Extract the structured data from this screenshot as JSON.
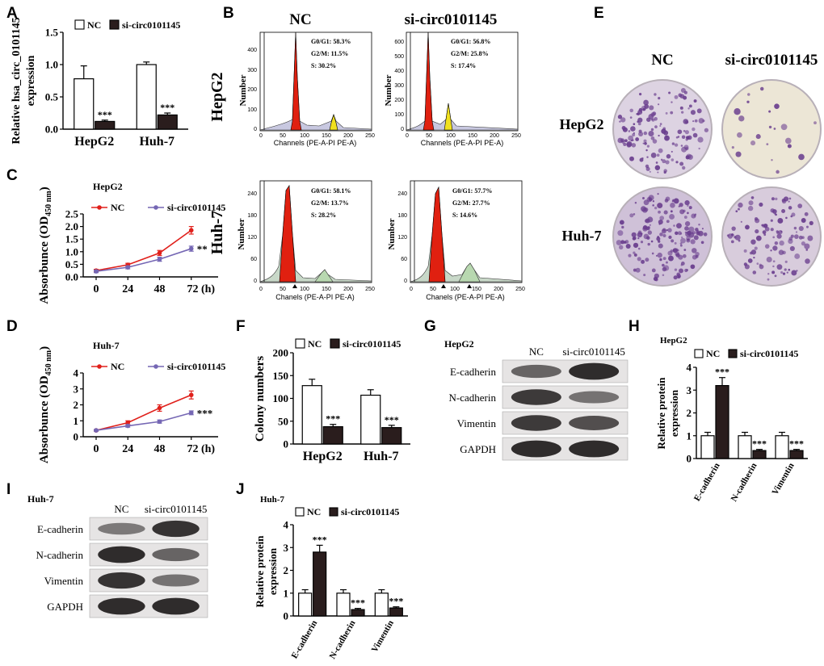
{
  "panel_labels": {
    "A": "A",
    "B": "B",
    "C": "C",
    "D": "D",
    "E": "E",
    "F": "F",
    "G": "G",
    "H": "H",
    "I": "I",
    "J": "J"
  },
  "colors": {
    "nc": "#ffffff",
    "si": "#2a1d1d",
    "nc_line": "#e0201b",
    "si_line": "#7567b4",
    "g0g1": "#e02010",
    "g2m": "#f0e020",
    "s_phase": "#b8d8b0",
    "colony": "#6a3e8e",
    "plate": "#ece6d6"
  },
  "legend": {
    "nc": "NC",
    "si": "si-circ0101145"
  },
  "panelA": {
    "ylabel_line1": "Relative hsa_circ_0101145",
    "ylabel_line2": "expression",
    "chart_data": {
      "type": "bar",
      "categories": [
        "HepG2",
        "Huh-7"
      ],
      "series": [
        {
          "name": "NC",
          "values": [
            0.78,
            1.0
          ],
          "errors": [
            0.2,
            0.04
          ]
        },
        {
          "name": "si-circ0101145",
          "values": [
            0.12,
            0.22
          ],
          "errors": [
            0.02,
            0.03
          ]
        }
      ],
      "ylim": [
        0,
        1.5
      ],
      "yticks": [
        "0.0",
        "0.5",
        "1.0",
        "1.5"
      ],
      "stars": [
        "***",
        "***"
      ]
    }
  },
  "panelB": {
    "col_headers": [
      "NC",
      "si-circ0101145"
    ],
    "row_labels": [
      "HepG2",
      "Huh-7"
    ],
    "ylabel": "Number",
    "xlabel_top": "Channels (PE-A-PI PE-A)",
    "xlabel_bottom": "Chanels (PE-A-PI PE-A)",
    "xticks": [
      "0",
      "50",
      "100",
      "150",
      "200",
      "250"
    ],
    "yticks_hepg2_nc": [
      "0",
      "100",
      "200",
      "300",
      "400"
    ],
    "yticks_hepg2_si": [
      "0",
      "100",
      "200",
      "300",
      "400",
      "500",
      "600"
    ],
    "yticks_huh7": [
      "0",
      "60",
      "120",
      "180",
      "240"
    ],
    "plots": [
      {
        "stats": [
          "G0/G1: 58.3%",
          "G2/M: 11.5%",
          "S: 30.2%"
        ]
      },
      {
        "stats": [
          "G0/G1: 56.8%",
          "G2/M: 25.8%",
          "S: 17.4%"
        ]
      },
      {
        "stats": [
          "G0/G1: 58.1%",
          "G2/M: 13.7%",
          "S: 28.2%"
        ]
      },
      {
        "stats": [
          "G0/G1: 57.7%",
          "G2/M: 27.7%",
          "S: 14.6%"
        ]
      }
    ]
  },
  "panelC": {
    "cell": "HepG2",
    "ylabel": "Absorbunce (OD",
    "ylabel_sub": "450 nm",
    "ylabel_end": ")",
    "chart_data": {
      "type": "line",
      "x": [
        "0",
        "24",
        "48",
        "72 (h)"
      ],
      "series": [
        {
          "name": "NC",
          "values": [
            0.25,
            0.48,
            0.95,
            1.85
          ],
          "errors": [
            0.05,
            0.06,
            0.1,
            0.15
          ]
        },
        {
          "name": "si-circ0101145",
          "values": [
            0.22,
            0.38,
            0.7,
            1.12
          ],
          "errors": [
            0.05,
            0.06,
            0.08,
            0.1
          ]
        }
      ],
      "ylim": [
        0,
        2.5
      ],
      "yticks": [
        "0.0",
        "0.5",
        "1.0",
        "1.5",
        "2.0",
        "2.5"
      ],
      "sig": "**"
    }
  },
  "panelD": {
    "cell": "Huh-7",
    "ylabel": "Absorbunce (OD",
    "ylabel_sub": "450 nm",
    "ylabel_end": ")",
    "chart_data": {
      "type": "line",
      "x": [
        "0",
        "24",
        "48",
        "72 (h)"
      ],
      "series": [
        {
          "name": "NC",
          "values": [
            0.4,
            0.88,
            1.8,
            2.62
          ],
          "errors": [
            0.05,
            0.12,
            0.2,
            0.25
          ]
        },
        {
          "name": "si-circ0101145",
          "values": [
            0.4,
            0.68,
            0.95,
            1.5
          ],
          "errors": [
            0.05,
            0.08,
            0.1,
            0.12
          ]
        }
      ],
      "ylim": [
        0,
        4
      ],
      "yticks": [
        "0",
        "1",
        "2",
        "3",
        "4"
      ],
      "sig": "***"
    }
  },
  "panelE": {
    "col_headers": [
      "NC",
      "si-circ0101145"
    ],
    "row_labels": [
      "HepG2",
      "Huh-7"
    ]
  },
  "panelF": {
    "ylabel": "Colony numbers",
    "chart_data": {
      "type": "bar",
      "categories": [
        "HepG2",
        "Huh-7"
      ],
      "series": [
        {
          "name": "NC",
          "values": [
            128,
            107
          ],
          "errors": [
            14,
            12
          ]
        },
        {
          "name": "si-circ0101145",
          "values": [
            38,
            36
          ],
          "errors": [
            5,
            5
          ]
        }
      ],
      "ylim": [
        0,
        200
      ],
      "yticks": [
        "0",
        "50",
        "100",
        "150",
        "200"
      ],
      "stars": [
        "***",
        "***"
      ]
    }
  },
  "panelG": {
    "cell": "HepG2",
    "col_headers": [
      "NC",
      "si-circ0101145"
    ],
    "rows": [
      "E-cadherin",
      "N-cadherin",
      "Vimentin",
      "GAPDH"
    ]
  },
  "panelH": {
    "cell": "HepG2",
    "ylabel_line1": "Relative protein",
    "ylabel_line2": "expression",
    "chart_data": {
      "type": "bar",
      "categories": [
        "E-cadherin",
        "N-cadherin",
        "Vimentin"
      ],
      "series": [
        {
          "name": "NC",
          "values": [
            1.0,
            1.0,
            1.0
          ],
          "errors": [
            0.15,
            0.15,
            0.15
          ]
        },
        {
          "name": "si-circ0101145",
          "values": [
            3.2,
            0.35,
            0.35
          ],
          "errors": [
            0.35,
            0.05,
            0.05
          ]
        }
      ],
      "ylim": [
        0,
        4
      ],
      "yticks": [
        "0",
        "1",
        "2",
        "3",
        "4"
      ],
      "stars": [
        "***",
        "***",
        "***"
      ]
    }
  },
  "panelI": {
    "cell": "Huh-7",
    "col_headers": [
      "NC",
      "si-circ0101145"
    ],
    "rows": [
      "E-cadherin",
      "N-cadherin",
      "Vimentin",
      "GAPDH"
    ]
  },
  "panelJ": {
    "cell": "Huh-7",
    "ylabel_line1": "Relative protein",
    "ylabel_line2": "expression",
    "chart_data": {
      "type": "bar",
      "categories": [
        "E-cadherin",
        "N-cadherin",
        "Vimentin"
      ],
      "series": [
        {
          "name": "NC",
          "values": [
            1.0,
            1.0,
            1.0
          ],
          "errors": [
            0.15,
            0.15,
            0.15
          ]
        },
        {
          "name": "si-circ0101145",
          "values": [
            2.8,
            0.28,
            0.35
          ],
          "errors": [
            0.3,
            0.05,
            0.05
          ]
        }
      ],
      "ylim": [
        0,
        4
      ],
      "yticks": [
        "0",
        "1",
        "2",
        "3",
        "4"
      ],
      "stars": [
        "***",
        "***",
        "***"
      ]
    }
  }
}
